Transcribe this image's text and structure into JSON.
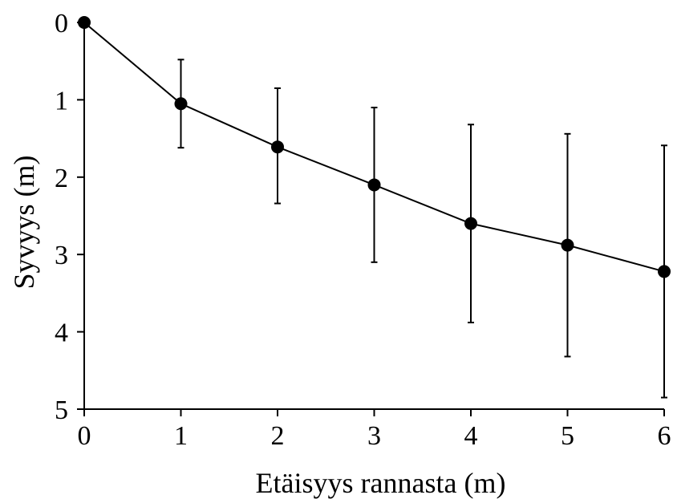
{
  "chart_data": {
    "type": "line",
    "title": "",
    "xlabel": "Etäisyys rannasta (m)",
    "ylabel": "Syvyys (m)",
    "xlim": [
      0,
      6
    ],
    "ylim": [
      0,
      5
    ],
    "y_inverted": true,
    "x_ticks": [
      "0",
      "1",
      "2",
      "3",
      "4",
      "5",
      "6"
    ],
    "y_ticks": [
      "0",
      "1",
      "2",
      "3",
      "4",
      "5"
    ],
    "grid": false,
    "legend": "none",
    "series": [
      {
        "x": [
          0,
          1,
          2,
          3,
          4,
          5,
          6
        ],
        "y": [
          0,
          1.05,
          1.61,
          2.1,
          2.6,
          2.88,
          3.22
        ],
        "error_low": [
          0,
          0.57,
          0.76,
          1.0,
          1.28,
          1.44,
          1.63
        ],
        "error_high": [
          0,
          0.57,
          0.73,
          1.0,
          1.28,
          1.44,
          1.63
        ],
        "marker": "filled-circle",
        "color": "#000000"
      }
    ]
  }
}
